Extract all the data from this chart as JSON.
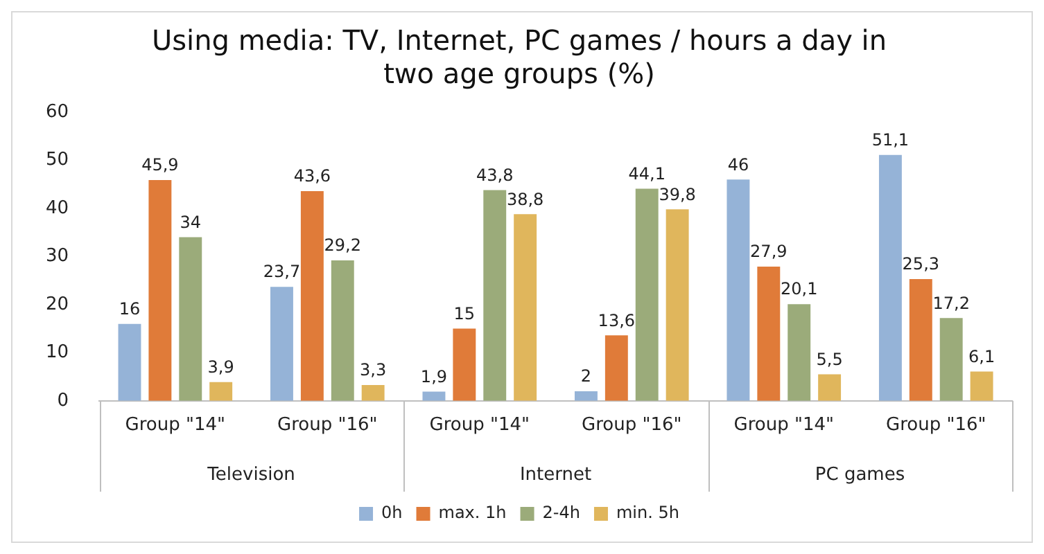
{
  "chart_data": {
    "type": "bar",
    "title": "Using media: TV, Internet, PC games / hours a day in two age groups (%)",
    "categories": [
      "Group \"14\"",
      "Group \"16\"",
      "Group \"14\"",
      "Group \"16\"",
      "Group \"14\"",
      "Group \"16\""
    ],
    "annotations": [
      "Television",
      "Internet",
      "PC games"
    ],
    "series": [
      {
        "name": "0h",
        "color": "#95b3d7",
        "values": [
          16,
          23.7,
          1.9,
          2,
          46,
          51.1
        ],
        "value_labels": [
          "16",
          "23,7",
          "1,9",
          "2",
          "46",
          "51,1"
        ]
      },
      {
        "name": "max. 1h",
        "color": "#e07b39",
        "values": [
          45.9,
          43.6,
          15,
          13.6,
          27.9,
          25.3
        ],
        "value_labels": [
          "45,9",
          "43,6",
          "15",
          "13,6",
          "27,9",
          "25,3"
        ]
      },
      {
        "name": "2-4h",
        "color": "#9bab7a",
        "values": [
          34,
          29.2,
          43.8,
          44.1,
          20.1,
          17.2
        ],
        "value_labels": [
          "34",
          "29,2",
          "43,8",
          "44,1",
          "20,1",
          "17,2"
        ]
      },
      {
        "name": "min. 5h",
        "color": "#e0b65c",
        "values": [
          3.9,
          3.3,
          38.8,
          39.8,
          5.5,
          6.1
        ],
        "value_labels": [
          "3,9",
          "3,3",
          "38,8",
          "39,8",
          "5,5",
          "6,1"
        ]
      }
    ],
    "ylim": [
      0,
      60
    ],
    "yticks": [
      0,
      10,
      20,
      30,
      40,
      50,
      60
    ],
    "legend": "bottom",
    "grid": false
  }
}
